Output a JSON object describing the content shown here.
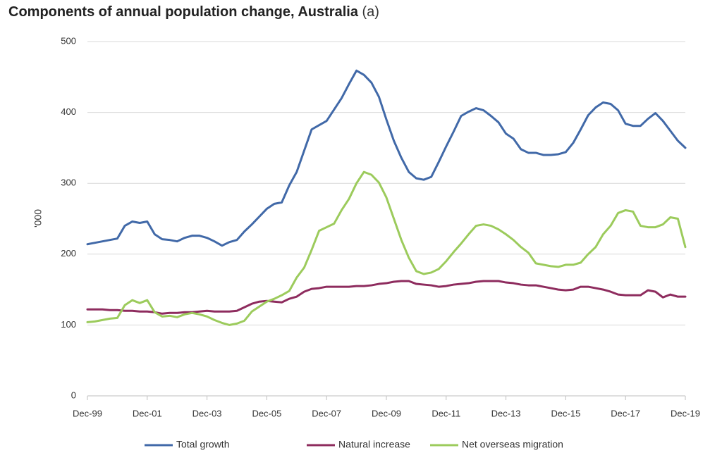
{
  "chart_data": {
    "type": "line",
    "title": "Components of annual population change, Australia",
    "title_note": "(a)",
    "y_label": "'000",
    "categories": [
      "Dec-99",
      null,
      null,
      null,
      null,
      null,
      null,
      null,
      "Dec-01",
      null,
      null,
      null,
      null,
      null,
      null,
      null,
      "Dec-03",
      null,
      null,
      null,
      null,
      null,
      null,
      null,
      "Dec-05",
      null,
      null,
      null,
      null,
      null,
      null,
      null,
      "Dec-07",
      null,
      null,
      null,
      null,
      null,
      null,
      null,
      "Dec-09",
      null,
      null,
      null,
      null,
      null,
      null,
      null,
      "Dec-11",
      null,
      null,
      null,
      null,
      null,
      null,
      null,
      "Dec-13",
      null,
      null,
      null,
      null,
      null,
      null,
      null,
      "Dec-15",
      null,
      null,
      null,
      null,
      null,
      null,
      null,
      "Dec-17",
      null,
      null,
      null,
      null,
      null,
      null,
      null,
      "Dec-19"
    ],
    "series": [
      {
        "name": "Total growth",
        "color": "#4169a8",
        "values": [
          214,
          216,
          218,
          220,
          222,
          240,
          246,
          244,
          246,
          228,
          221,
          220,
          218,
          223,
          226,
          226,
          223,
          218,
          212,
          217,
          220,
          232,
          242,
          253,
          264,
          271,
          273,
          297,
          316,
          346,
          376,
          382,
          388,
          404,
          420,
          440,
          459,
          453,
          442,
          422,
          390,
          360,
          336,
          316,
          307,
          305,
          309,
          330,
          352,
          373,
          395,
          401,
          406,
          403,
          395,
          386,
          370,
          363,
          348,
          343,
          343,
          340,
          340,
          341,
          344,
          357,
          376,
          396,
          407,
          414,
          412,
          403,
          384,
          381,
          381,
          391,
          399,
          388,
          374,
          360,
          350
        ]
      },
      {
        "name": "Natural increase",
        "color": "#8e2c5e",
        "values": [
          122,
          122,
          122,
          121,
          121,
          120,
          120,
          119,
          119,
          118,
          116,
          117,
          117,
          118,
          118,
          119,
          120,
          119,
          119,
          119,
          120,
          125,
          130,
          133,
          134,
          133,
          132,
          137,
          140,
          147,
          151,
          152,
          154,
          154,
          154,
          154,
          155,
          155,
          156,
          158,
          159,
          161,
          162,
          162,
          158,
          157,
          156,
          154,
          155,
          157,
          158,
          159,
          161,
          162,
          162,
          162,
          160,
          159,
          157,
          156,
          156,
          154,
          152,
          150,
          149,
          150,
          154,
          154,
          152,
          150,
          147,
          143,
          142,
          142,
          142,
          149,
          147,
          139,
          143,
          140,
          140
        ]
      },
      {
        "name": "Net overseas migration",
        "color": "#9ccb5c",
        "values": [
          104,
          105,
          107,
          109,
          110,
          128,
          135,
          131,
          135,
          118,
          112,
          113,
          111,
          115,
          117,
          115,
          112,
          107,
          103,
          100,
          102,
          106,
          119,
          126,
          133,
          137,
          142,
          148,
          167,
          181,
          206,
          233,
          238,
          243,
          262,
          278,
          300,
          316,
          312,
          301,
          280,
          250,
          220,
          195,
          176,
          172,
          174,
          179,
          190,
          203,
          215,
          228,
          240,
          242,
          240,
          235,
          228,
          220,
          210,
          202,
          187,
          185,
          183,
          182,
          185,
          185,
          188,
          200,
          210,
          228,
          240,
          258,
          262,
          260,
          240,
          238,
          238,
          242,
          252,
          250,
          210
        ]
      }
    ],
    "ylim": [
      0,
      500
    ],
    "yticks": [
      0,
      100,
      200,
      300,
      400,
      500
    ],
    "grid": true,
    "legend": "bottom"
  }
}
